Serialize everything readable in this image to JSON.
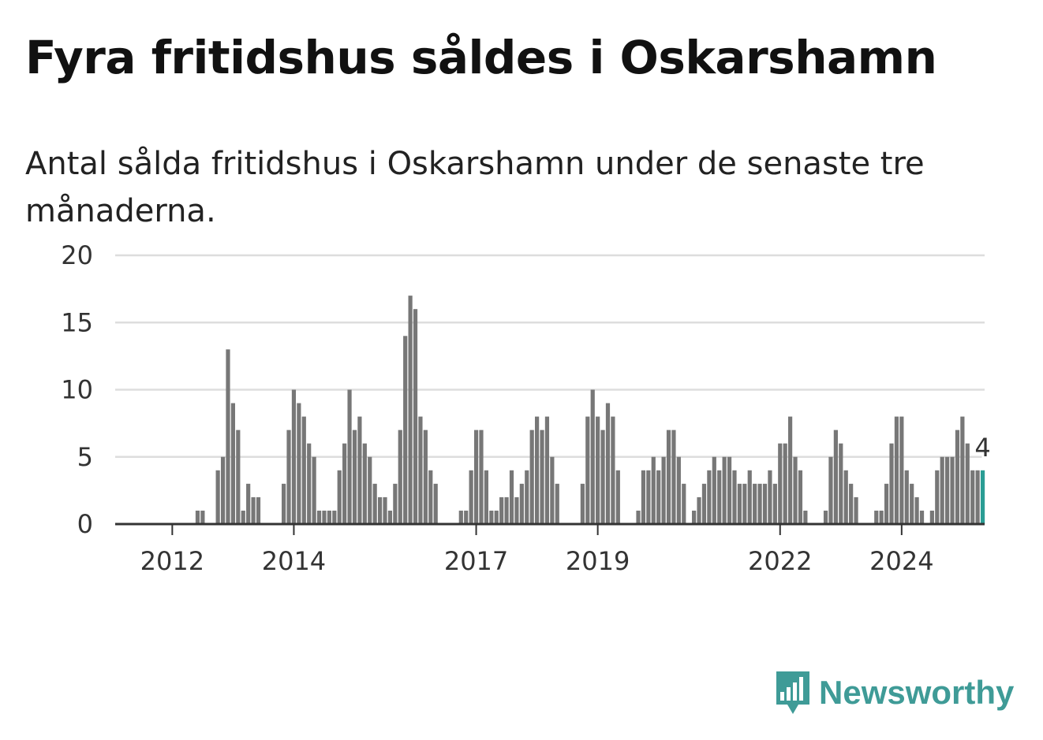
{
  "title": "Fyra fritidshus såldes i Oskarshamn",
  "subtitle": "Antal sålda fritidshus i Oskarshamn under de senaste tre månaderna.",
  "logo": {
    "text": "Newsworthy",
    "icon": "newsworthy-logo-icon"
  },
  "colors": {
    "bar": "#777777",
    "highlight": "#2a9d94",
    "grid": "#dddddd",
    "axis": "#333333",
    "brand": "#3f9b97"
  },
  "chart_data": {
    "type": "bar",
    "x_ticks": [
      {
        "label": "2012",
        "index": 3
      },
      {
        "label": "2014",
        "index": 27
      },
      {
        "label": "2017",
        "index": 63
      },
      {
        "label": "2019",
        "index": 87
      },
      {
        "label": "2022",
        "index": 123
      },
      {
        "label": "2024",
        "index": 147
      }
    ],
    "y_ticks": [
      0,
      5,
      10,
      15,
      20
    ],
    "ylim": [
      0,
      20
    ],
    "grid": true,
    "values": [
      0,
      0,
      0,
      0,
      0,
      0,
      0,
      0,
      1,
      1,
      0,
      0,
      4,
      5,
      13,
      9,
      7,
      1,
      3,
      2,
      2,
      0,
      0,
      0,
      0,
      3,
      7,
      10,
      9,
      8,
      6,
      5,
      1,
      1,
      1,
      1,
      4,
      6,
      10,
      7,
      8,
      6,
      5,
      3,
      2,
      2,
      1,
      3,
      7,
      14,
      17,
      16,
      8,
      7,
      4,
      3,
      0,
      0,
      0,
      0,
      1,
      1,
      4,
      7,
      7,
      4,
      1,
      1,
      2,
      2,
      4,
      2,
      3,
      4,
      7,
      8,
      7,
      8,
      5,
      3,
      0,
      0,
      0,
      0,
      3,
      8,
      10,
      8,
      7,
      9,
      8,
      4,
      0,
      0,
      0,
      1,
      4,
      4,
      5,
      4,
      5,
      7,
      7,
      5,
      3,
      0,
      1,
      2,
      3,
      4,
      5,
      4,
      5,
      5,
      4,
      3,
      3,
      4,
      3,
      3,
      3,
      4,
      3,
      6,
      6,
      8,
      5,
      4,
      1,
      0,
      0,
      0,
      1,
      5,
      7,
      6,
      4,
      3,
      2,
      0,
      0,
      0,
      1,
      1,
      3,
      6,
      8,
      8,
      4,
      3,
      2,
      1,
      0,
      1,
      4,
      5,
      5,
      5,
      7,
      8,
      6,
      4,
      4,
      4
    ],
    "highlight_last": true,
    "last_label": "4"
  }
}
